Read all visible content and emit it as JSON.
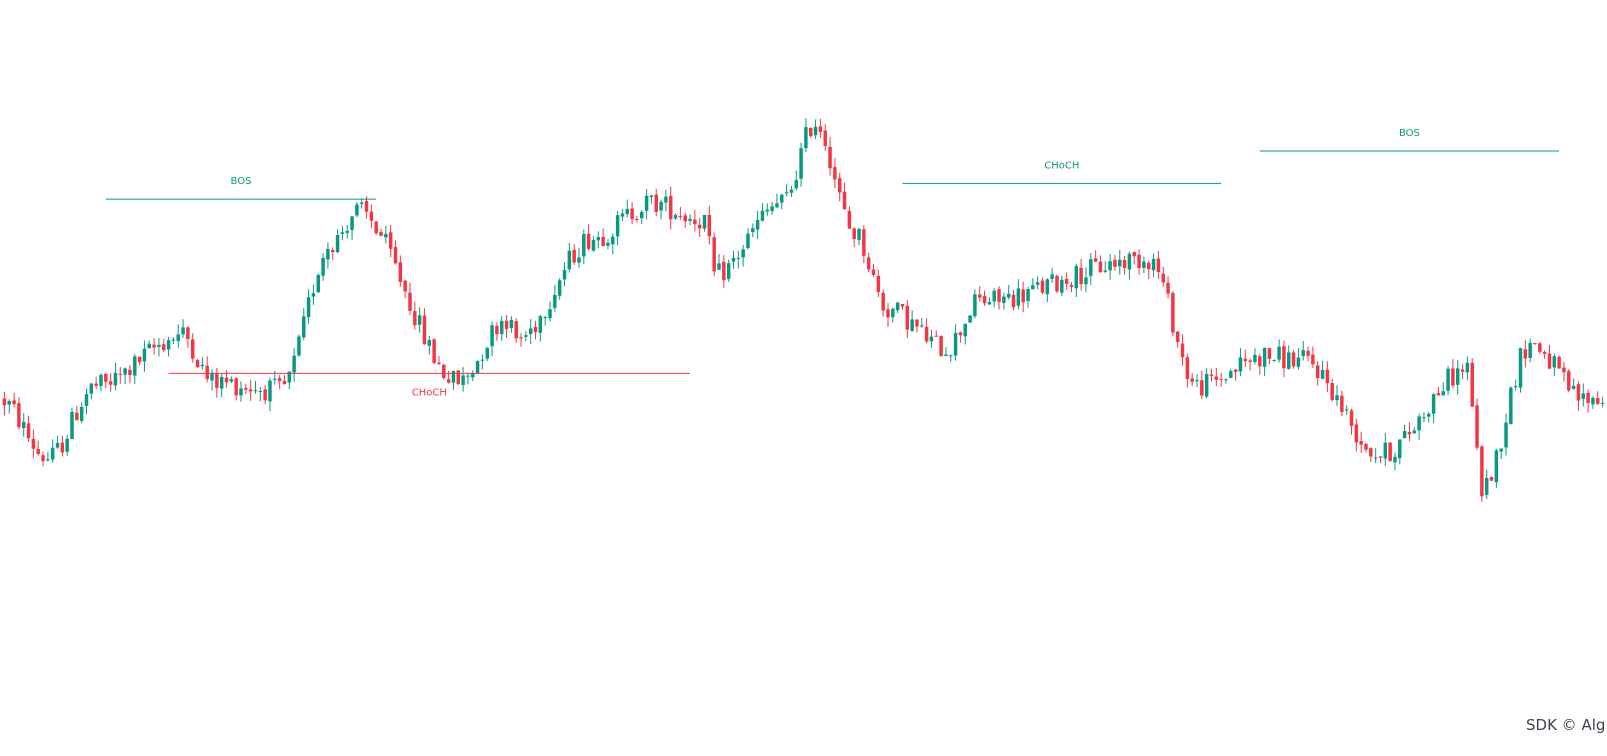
{
  "watermark": "SDK © Alg",
  "colors": {
    "bullish": "#089981",
    "bearish": "#f23645",
    "background": "#ffffff"
  },
  "chart_data": {
    "type": "candlestick",
    "title": "",
    "xlabel": "",
    "ylabel": "",
    "grid": false,
    "price_range": [
      0,
      100
    ],
    "bar_count": 332,
    "anchors": [
      [
        0,
        35
      ],
      [
        10,
        21
      ],
      [
        20,
        38
      ],
      [
        38,
        50
      ],
      [
        44,
        39
      ],
      [
        58,
        37
      ],
      [
        69,
        72
      ],
      [
        74,
        79
      ],
      [
        95,
        39
      ],
      [
        105,
        54
      ],
      [
        107,
        49
      ],
      [
        123,
        73
      ],
      [
        135,
        81
      ],
      [
        146,
        77
      ],
      [
        148,
        64
      ],
      [
        162,
        81
      ],
      [
        169,
        100
      ],
      [
        177,
        74
      ],
      [
        184,
        56
      ],
      [
        196,
        47
      ],
      [
        203,
        58
      ],
      [
        238,
        68
      ],
      [
        248,
        38
      ],
      [
        262,
        45
      ],
      [
        270,
        44
      ],
      [
        286,
        22
      ],
      [
        304,
        42
      ],
      [
        307,
        14
      ],
      [
        317,
        48
      ],
      [
        328,
        35
      ]
    ],
    "structure": [
      {
        "type": "BOS",
        "direction": "bullish",
        "start_bar": 21,
        "end_bar": 77,
        "price": 81.9,
        "label": "BOS"
      },
      {
        "type": "CHoCH",
        "direction": "bearish",
        "start_bar": 34,
        "end_bar": 142,
        "price": 41.0,
        "label": "CHoCH"
      },
      {
        "type": "CHoCH",
        "direction": "bullish",
        "start_bar": 186,
        "end_bar": 252,
        "price": 85.6,
        "label": "CHoCH"
      },
      {
        "type": "BOS",
        "direction": "bullish",
        "start_bar": 260,
        "end_bar": 322,
        "price": 93.2,
        "label": "BOS"
      }
    ]
  }
}
